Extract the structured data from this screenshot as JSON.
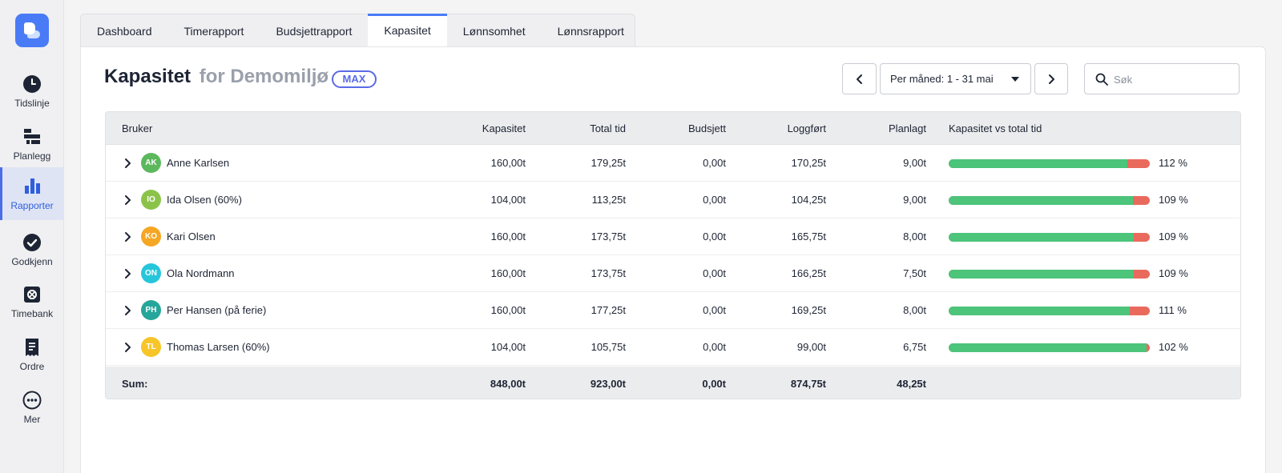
{
  "sidebar": {
    "items": [
      {
        "label": "Tidslinje",
        "icon": "clock-icon"
      },
      {
        "label": "Planlegg",
        "icon": "planner-icon"
      },
      {
        "label": "Rapporter",
        "icon": "bar-chart-icon",
        "active": true
      },
      {
        "label": "Godkjenn",
        "icon": "check-circle-icon"
      },
      {
        "label": "Timebank",
        "icon": "safe-icon"
      },
      {
        "label": "Ordre",
        "icon": "receipt-icon"
      },
      {
        "label": "Mer",
        "icon": "more-icon"
      }
    ]
  },
  "tabs": [
    "Dashboard",
    "Timerapport",
    "Budsjettrapport",
    "Kapasitet",
    "Lønnsomhet",
    "Lønnsrapport"
  ],
  "active_tab": "Kapasitet",
  "header": {
    "title": "Kapasitet",
    "subtitle": "for Demomiljø",
    "badge": "MAX",
    "period": "Per måned: 1 - 31 mai",
    "search_placeholder": "Søk"
  },
  "table": {
    "columns": [
      "Bruker",
      "Kapasitet",
      "Total tid",
      "Budsjett",
      "Loggført",
      "Planlagt",
      "Kapasitet vs total tid"
    ],
    "rows": [
      {
        "initials": "AK",
        "avatar_color": "#5cb85c",
        "name": "Anne Karlsen",
        "kapasitet": "160,00t",
        "total": "179,25t",
        "budsjett": "0,00t",
        "loggfort": "170,25t",
        "planlagt": "9,00t",
        "pct": "112 %",
        "ratio": 0.89
      },
      {
        "initials": "IO",
        "avatar_color": "#8bc34a",
        "name": "Ida Olsen (60%)",
        "kapasitet": "104,00t",
        "total": "113,25t",
        "budsjett": "0,00t",
        "loggfort": "104,25t",
        "planlagt": "9,00t",
        "pct": "109 %",
        "ratio": 0.918
      },
      {
        "initials": "KO",
        "avatar_color": "#f5a623",
        "name": "Kari Olsen",
        "kapasitet": "160,00t",
        "total": "173,75t",
        "budsjett": "0,00t",
        "loggfort": "165,75t",
        "planlagt": "8,00t",
        "pct": "109 %",
        "ratio": 0.921
      },
      {
        "initials": "ON",
        "avatar_color": "#26c6da",
        "name": "Ola Nordmann",
        "kapasitet": "160,00t",
        "total": "173,75t",
        "budsjett": "0,00t",
        "loggfort": "166,25t",
        "planlagt": "7,50t",
        "pct": "109 %",
        "ratio": 0.921
      },
      {
        "initials": "PH",
        "avatar_color": "#26a69a",
        "name": "Per Hansen (på ferie)",
        "kapasitet": "160,00t",
        "total": "177,25t",
        "budsjett": "0,00t",
        "loggfort": "169,25t",
        "planlagt": "8,00t",
        "pct": "111 %",
        "ratio": 0.9
      },
      {
        "initials": "TL",
        "avatar_color": "#f7c528",
        "name": "Thomas Larsen (60%)",
        "kapasitet": "104,00t",
        "total": "105,75t",
        "budsjett": "0,00t",
        "loggfort": "99,00t",
        "planlagt": "6,75t",
        "pct": "102 %",
        "ratio": 0.983
      }
    ],
    "footer": {
      "label": "Sum:",
      "kapasitet": "848,00t",
      "total": "923,00t",
      "budsjett": "0,00t",
      "loggfort": "874,75t",
      "planlagt": "48,25t"
    }
  }
}
